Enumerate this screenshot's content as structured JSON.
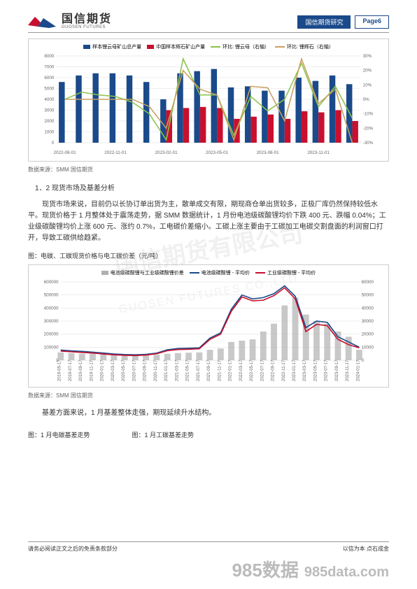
{
  "header": {
    "logo_cn": "国信期货",
    "logo_en": "GUOSEN FUTURES",
    "logo_colors": {
      "red": "#c8102e",
      "blue": "#1a4a8a"
    },
    "tag_research": "国信期货研究",
    "tag_page": "Page6"
  },
  "watermark": {
    "cn": "国信期货有限公司",
    "en": "GUOSEN FUTURES CO.,LTD"
  },
  "chart1": {
    "type": "bar+line-dual-axis",
    "legend": [
      "样本锂云母矿山总产量",
      "中国样本辉石矿山产量",
      "环比: 锂云母（右轴）",
      "环比: 锂辉石（右轴）"
    ],
    "legend_colors": [
      "#1a4a8a",
      "#c8102e",
      "#8bc34a",
      "#c8a060"
    ],
    "x_labels": [
      "2022-08-01",
      "2022-11-01",
      "2023-02-01",
      "2023-05-01",
      "2023-08-01",
      "2023-11-01"
    ],
    "y_left": {
      "min": 0,
      "max": 8000,
      "step": 1000
    },
    "y_right": {
      "min": -30,
      "max": 30,
      "step": 10,
      "suffix": "%"
    },
    "bars_blue": [
      5600,
      6200,
      6400,
      6400,
      6200,
      5600,
      4000,
      6400,
      6600,
      6800,
      5100,
      5200,
      4800,
      4800,
      6000,
      5700,
      6200,
      5400
    ],
    "bars_red": [
      0,
      0,
      0,
      0,
      0,
      0,
      3000,
      3200,
      3300,
      3200,
      2200,
      2400,
      2600,
      2200,
      2900,
      2800,
      3000,
      2000
    ],
    "line_green": [
      0,
      5,
      3,
      2,
      -2,
      -10,
      -28,
      28,
      3,
      3,
      -25,
      2,
      -8,
      0,
      25,
      -5,
      9,
      -13
    ],
    "line_tan": [
      0,
      0,
      0,
      0,
      0,
      -5,
      -20,
      20,
      7,
      3,
      -28,
      9,
      8,
      -15,
      28,
      -3,
      7,
      -30
    ],
    "background_color": "#ffffff",
    "grid_color": "#dddddd"
  },
  "source1": "数据来源：SMM 国信期货",
  "section_1_2": "1．2 现货市场及基差分析",
  "para1": "现货市场来说，目前仍以长协订单出货为主，散单成交有限，期现商仓单出货较多，正极厂库仍然保持较低水平。现货价格于 1 月整体处于震荡走势，据 SMM 数据统计，1 月份电池级碳酸锂均价下跌 400 元、跌幅 0.04%；工业级碳酸锂均价上涨 600 元、涨约 0.7%，工电碳价差缩小。工碳上涨主要由于工碳加工电碳交割盘面的利润窗口打开，导致工碳供给趋紧。",
  "fig2_caption": "图：电碳、工碳现货价格与电工碳价差（元/吨）",
  "chart2": {
    "type": "bar+line",
    "legend": [
      "电池级碳酸锂与工业级碳酸锂价差",
      "电池级碳酸锂 - 平均价",
      "工业级碳酸锂 - 平均价"
    ],
    "legend_colors": [
      "#b0b0b0",
      "#1a4a8a",
      "#c8102e"
    ],
    "y_left": {
      "min": 0,
      "max": 600000,
      "step": 100000
    },
    "y_right": {
      "min": 0,
      "max": 60000,
      "step": 10000
    },
    "x_labels": [
      "2019-05-17",
      "2019-07-17",
      "2019-09-17",
      "2019-11-17",
      "2020-01-17",
      "2020-03-17",
      "2020-05-17",
      "2020-07-17",
      "2020-09-17",
      "2020-11-17",
      "2021-01-17",
      "2021-03-17",
      "2021-05-17",
      "2021-07-17",
      "2021-09-17",
      "2021-11-17",
      "2022-01-17",
      "2022-03-17",
      "2022-05-17",
      "2022-07-17",
      "2022-09-17",
      "2022-11-17",
      "2023-01-17",
      "2023-03-17",
      "2023-05-17",
      "2023-07-17",
      "2023-09-17",
      "2023-11-17",
      "2024-01-17"
    ],
    "line_blue": [
      78000,
      72000,
      68000,
      62000,
      55000,
      48000,
      44000,
      42000,
      45000,
      55000,
      80000,
      90000,
      92000,
      95000,
      170000,
      210000,
      390000,
      500000,
      470000,
      480000,
      510000,
      570000,
      490000,
      250000,
      300000,
      290000,
      180000,
      140000,
      100000
    ],
    "line_red": [
      70000,
      65000,
      60000,
      55000,
      48000,
      42000,
      38000,
      36000,
      40000,
      50000,
      73000,
      82000,
      84000,
      88000,
      160000,
      200000,
      375000,
      485000,
      455000,
      460000,
      495000,
      555000,
      470000,
      220000,
      275000,
      265000,
      160000,
      120000,
      95000
    ],
    "bars_gray_sample": [
      6000,
      5500,
      5000,
      5000,
      4500,
      4000,
      3800,
      3600,
      3800,
      4200,
      5000,
      5500,
      5800,
      6000,
      8000,
      9000,
      14000,
      15000,
      16000,
      22000,
      28000,
      42000,
      48000,
      35000,
      30000,
      28000,
      22000,
      18000,
      8000
    ],
    "background_color": "#ffffff",
    "grid_color": "#dddddd"
  },
  "source2": "数据来源：SMM 国信期货",
  "para2": "基差方面来说，1 月基差整体走强，期现延续升水结构。",
  "fig3_caption_left": "图：1 月电碳基差走势",
  "fig3_caption_right": "图：1 月工碳基差走势",
  "footer": {
    "left": "请务必阅读正文之后的免责条款部分",
    "right": "以信为本 点石成金"
  },
  "bottom_watermark": {
    "big": "985数据",
    "url": "985data.com"
  }
}
